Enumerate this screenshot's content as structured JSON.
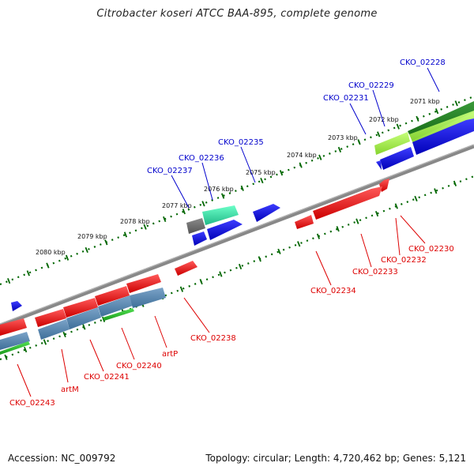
{
  "title": "Citrobacter koseri ATCC BAA-895, complete genome",
  "footer": {
    "accession": "Accession: NC_009792",
    "topology": "Topology: circular; Length: 4,720,462 bp; Genes: 5,121"
  },
  "colors": {
    "forward_label": "#0000cc",
    "reverse_label": "#dd0000",
    "tick": "#006600",
    "backbone": "#888888"
  },
  "ruler": [
    {
      "label": "2071 kbp"
    },
    {
      "label": "2072 kbp"
    },
    {
      "label": "2073 kbp"
    },
    {
      "label": "2074 kbp"
    },
    {
      "label": "2075 kbp"
    },
    {
      "label": "2076 kbp"
    },
    {
      "label": "2077 kbp"
    },
    {
      "label": "2078 kbp"
    },
    {
      "label": "2079 kbp"
    },
    {
      "label": "2080 kbp"
    }
  ],
  "gene_labels_forward": [
    "CKO_02228",
    "CKO_02229",
    "CKO_02231",
    "CKO_02235",
    "CKO_02236",
    "CKO_02237"
  ],
  "gene_labels_reverse": [
    "CKO_02230",
    "CKO_02232",
    "CKO_02233",
    "CKO_02234",
    "CKO_02238",
    "artP",
    "CKO_02240",
    "CKO_02241",
    "artM",
    "CKO_02243"
  ]
}
